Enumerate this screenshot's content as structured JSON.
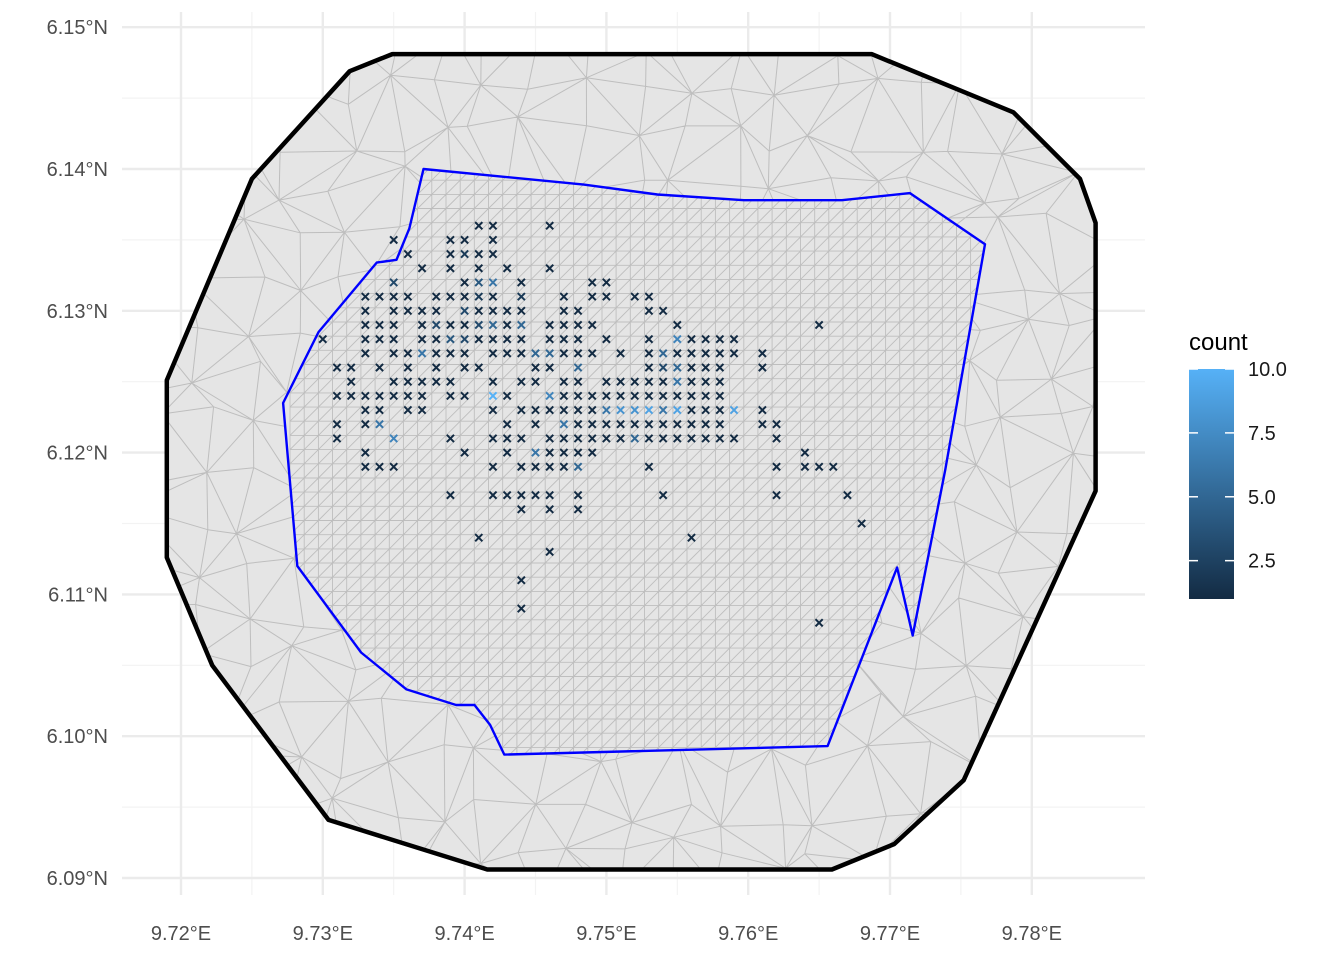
{
  "chart_data": {
    "type": "map",
    "x_axis": {
      "ticks": [
        "9.72°E",
        "9.73°E",
        "9.74°E",
        "9.75°E",
        "9.76°E",
        "9.77°E",
        "9.78°E"
      ],
      "tick_values": [
        9.72,
        9.73,
        9.74,
        9.75,
        9.76,
        9.77,
        9.78
      ]
    },
    "y_axis": {
      "ticks": [
        "6.09°N",
        "6.10°N",
        "6.11°N",
        "6.12°N",
        "6.13°N",
        "6.14°N",
        "6.15°N"
      ],
      "tick_values": [
        6.09,
        6.1,
        6.11,
        6.12,
        6.13,
        6.14,
        6.15
      ]
    },
    "xlim": [
      9.7155,
      9.788
    ],
    "ylim": [
      6.089,
      6.151
    ],
    "grid": true,
    "legend": {
      "title": "count",
      "labels": [
        "10.0",
        "7.5",
        "5.0",
        "2.5"
      ],
      "values": [
        10.0,
        7.5,
        5.0,
        2.5
      ],
      "range": [
        1,
        10
      ],
      "position": "right",
      "color_low": "#132b43",
      "color_high": "#56b1f7"
    },
    "colors": {
      "outer_boundary": "#000000",
      "inner_boundary": "#0000ff",
      "mesh_fill": "#e5e5e5",
      "mesh_line": "#bebebe",
      "grid": "#ebebeb"
    },
    "outer_boundary": [
      [
        9.7349,
        6.1481
      ],
      [
        9.7319,
        6.1469
      ],
      [
        9.725,
        6.1393
      ],
      [
        9.719,
        6.1251
      ],
      [
        9.719,
        6.1126
      ],
      [
        9.7222,
        6.105
      ],
      [
        9.7304,
        6.0941
      ],
      [
        9.7416,
        6.0906
      ],
      [
        9.7659,
        6.0906
      ],
      [
        9.7703,
        6.0924
      ],
      [
        9.7752,
        6.0969
      ],
      [
        9.7845,
        6.1173
      ],
      [
        9.7845,
        6.1362
      ],
      [
        9.7834,
        6.1393
      ],
      [
        9.7787,
        6.144
      ],
      [
        9.7687,
        6.1481
      ]
    ],
    "inner_boundary": [
      [
        9.7371,
        6.14
      ],
      [
        9.7484,
        6.1389
      ],
      [
        9.7536,
        6.1382
      ],
      [
        9.7597,
        6.1378
      ],
      [
        9.7666,
        6.1378
      ],
      [
        9.7714,
        6.1383
      ],
      [
        9.7767,
        6.1347
      ],
      [
        9.7739,
        6.1188
      ],
      [
        9.7716,
        6.1071
      ],
      [
        9.7705,
        6.1119
      ],
      [
        9.7656,
        6.0993
      ],
      [
        9.7428,
        6.0987
      ],
      [
        9.7418,
        6.1008
      ],
      [
        9.7407,
        6.1022
      ],
      [
        9.7394,
        6.1022
      ],
      [
        9.7359,
        6.1033
      ],
      [
        9.7327,
        6.1059
      ],
      [
        9.7282,
        6.112
      ],
      [
        9.7272,
        6.1235
      ],
      [
        9.7297,
        6.1285
      ],
      [
        9.7338,
        6.1334
      ],
      [
        9.7352,
        6.1336
      ],
      [
        9.7361,
        6.1358
      ]
    ],
    "points": [
      [
        9.735,
        6.135,
        1
      ],
      [
        9.739,
        6.135,
        1
      ],
      [
        9.74,
        6.135,
        1
      ],
      [
        9.742,
        6.135,
        1
      ],
      [
        9.736,
        6.134,
        1
      ],
      [
        9.741,
        6.136,
        1
      ],
      [
        9.742,
        6.136,
        1
      ],
      [
        9.746,
        6.136,
        1
      ],
      [
        9.737,
        6.133,
        1
      ],
      [
        9.739,
        6.134,
        1
      ],
      [
        9.74,
        6.134,
        2
      ],
      [
        9.741,
        6.134,
        1
      ],
      [
        9.742,
        6.134,
        1
      ],
      [
        9.739,
        6.133,
        1
      ],
      [
        9.741,
        6.133,
        1
      ],
      [
        9.743,
        6.133,
        1
      ],
      [
        9.746,
        6.133,
        1
      ],
      [
        9.735,
        6.132,
        3
      ],
      [
        9.74,
        6.132,
        1
      ],
      [
        9.741,
        6.132,
        4
      ],
      [
        9.742,
        6.132,
        6
      ],
      [
        9.744,
        6.132,
        1
      ],
      [
        9.749,
        6.132,
        1
      ],
      [
        9.75,
        6.132,
        1
      ],
      [
        9.733,
        6.131,
        1
      ],
      [
        9.734,
        6.131,
        1
      ],
      [
        9.735,
        6.131,
        1
      ],
      [
        9.736,
        6.131,
        1
      ],
      [
        9.738,
        6.131,
        1
      ],
      [
        9.739,
        6.131,
        1
      ],
      [
        9.74,
        6.131,
        1
      ],
      [
        9.741,
        6.131,
        2
      ],
      [
        9.742,
        6.131,
        1
      ],
      [
        9.744,
        6.131,
        2
      ],
      [
        9.747,
        6.131,
        1
      ],
      [
        9.749,
        6.131,
        1
      ],
      [
        9.75,
        6.131,
        1
      ],
      [
        9.752,
        6.131,
        1
      ],
      [
        9.753,
        6.131,
        1
      ],
      [
        9.733,
        6.13,
        1
      ],
      [
        9.735,
        6.13,
        1
      ],
      [
        9.736,
        6.13,
        1
      ],
      [
        9.737,
        6.13,
        1
      ],
      [
        9.738,
        6.13,
        1
      ],
      [
        9.74,
        6.13,
        3
      ],
      [
        9.741,
        6.13,
        1
      ],
      [
        9.742,
        6.13,
        1
      ],
      [
        9.743,
        6.13,
        1
      ],
      [
        9.744,
        6.13,
        1
      ],
      [
        9.747,
        6.13,
        1
      ],
      [
        9.748,
        6.13,
        1
      ],
      [
        9.753,
        6.13,
        1
      ],
      [
        9.754,
        6.13,
        1
      ],
      [
        9.733,
        6.129,
        1
      ],
      [
        9.734,
        6.129,
        1
      ],
      [
        9.735,
        6.129,
        1
      ],
      [
        9.737,
        6.129,
        1
      ],
      [
        9.738,
        6.129,
        3
      ],
      [
        9.739,
        6.129,
        1
      ],
      [
        9.74,
        6.129,
        1
      ],
      [
        9.741,
        6.129,
        3
      ],
      [
        9.742,
        6.129,
        5
      ],
      [
        9.743,
        6.129,
        1
      ],
      [
        9.744,
        6.129,
        5
      ],
      [
        9.746,
        6.129,
        1
      ],
      [
        9.747,
        6.129,
        1
      ],
      [
        9.748,
        6.129,
        1
      ],
      [
        9.749,
        6.129,
        1
      ],
      [
        9.755,
        6.129,
        1
      ],
      [
        9.73,
        6.128,
        1
      ],
      [
        9.733,
        6.128,
        1
      ],
      [
        9.734,
        6.128,
        1
      ],
      [
        9.735,
        6.128,
        1
      ],
      [
        9.737,
        6.128,
        1
      ],
      [
        9.738,
        6.128,
        1
      ],
      [
        9.739,
        6.128,
        4
      ],
      [
        9.74,
        6.128,
        3
      ],
      [
        9.741,
        6.128,
        1
      ],
      [
        9.742,
        6.128,
        1
      ],
      [
        9.743,
        6.128,
        1
      ],
      [
        9.744,
        6.128,
        1
      ],
      [
        9.746,
        6.128,
        1
      ],
      [
        9.747,
        6.128,
        1
      ],
      [
        9.748,
        6.128,
        1
      ],
      [
        9.75,
        6.128,
        1
      ],
      [
        9.753,
        6.128,
        1
      ],
      [
        9.755,
        6.128,
        7
      ],
      [
        9.756,
        6.128,
        1
      ],
      [
        9.757,
        6.128,
        1
      ],
      [
        9.758,
        6.128,
        1
      ],
      [
        9.759,
        6.128,
        1
      ],
      [
        9.733,
        6.127,
        1
      ],
      [
        9.735,
        6.127,
        1
      ],
      [
        9.736,
        6.127,
        1
      ],
      [
        9.737,
        6.127,
        6
      ],
      [
        9.738,
        6.127,
        1
      ],
      [
        9.739,
        6.127,
        1
      ],
      [
        9.74,
        6.127,
        1
      ],
      [
        9.742,
        6.127,
        1
      ],
      [
        9.743,
        6.127,
        1
      ],
      [
        9.744,
        6.127,
        1
      ],
      [
        9.745,
        6.127,
        5
      ],
      [
        9.746,
        6.127,
        5
      ],
      [
        9.747,
        6.127,
        1
      ],
      [
        9.748,
        6.127,
        1
      ],
      [
        9.749,
        6.127,
        1
      ],
      [
        9.751,
        6.127,
        1
      ],
      [
        9.753,
        6.127,
        1
      ],
      [
        9.754,
        6.127,
        5
      ],
      [
        9.755,
        6.127,
        1
      ],
      [
        9.756,
        6.127,
        1
      ],
      [
        9.757,
        6.127,
        1
      ],
      [
        9.758,
        6.127,
        1
      ],
      [
        9.759,
        6.127,
        1
      ],
      [
        9.761,
        6.127,
        1
      ],
      [
        9.731,
        6.126,
        1
      ],
      [
        9.732,
        6.126,
        1
      ],
      [
        9.734,
        6.126,
        1
      ],
      [
        9.736,
        6.126,
        1
      ],
      [
        9.738,
        6.126,
        1
      ],
      [
        9.74,
        6.126,
        1
      ],
      [
        9.741,
        6.126,
        1
      ],
      [
        9.745,
        6.126,
        1
      ],
      [
        9.746,
        6.126,
        1
      ],
      [
        9.748,
        6.126,
        5
      ],
      [
        9.753,
        6.126,
        1
      ],
      [
        9.754,
        6.126,
        3
      ],
      [
        9.755,
        6.126,
        5
      ],
      [
        9.756,
        6.126,
        1
      ],
      [
        9.757,
        6.126,
        1
      ],
      [
        9.758,
        6.126,
        1
      ],
      [
        9.761,
        6.126,
        1
      ],
      [
        9.732,
        6.125,
        1
      ],
      [
        9.735,
        6.125,
        1
      ],
      [
        9.736,
        6.125,
        1
      ],
      [
        9.737,
        6.125,
        1
      ],
      [
        9.738,
        6.125,
        1
      ],
      [
        9.739,
        6.125,
        1
      ],
      [
        9.742,
        6.125,
        1
      ],
      [
        9.744,
        6.125,
        1
      ],
      [
        9.745,
        6.125,
        1
      ],
      [
        9.747,
        6.125,
        1
      ],
      [
        9.748,
        6.125,
        1
      ],
      [
        9.75,
        6.125,
        1
      ],
      [
        9.751,
        6.125,
        1
      ],
      [
        9.752,
        6.125,
        1
      ],
      [
        9.753,
        6.125,
        1
      ],
      [
        9.754,
        6.125,
        1
      ],
      [
        9.755,
        6.125,
        6
      ],
      [
        9.756,
        6.125,
        1
      ],
      [
        9.757,
        6.125,
        1
      ],
      [
        9.758,
        6.125,
        1
      ],
      [
        9.731,
        6.124,
        1
      ],
      [
        9.732,
        6.124,
        1
      ],
      [
        9.733,
        6.124,
        1
      ],
      [
        9.734,
        6.124,
        1
      ],
      [
        9.735,
        6.124,
        1
      ],
      [
        9.736,
        6.124,
        1
      ],
      [
        9.737,
        6.124,
        1
      ],
      [
        9.739,
        6.124,
        1
      ],
      [
        9.74,
        6.124,
        1
      ],
      [
        9.742,
        6.124,
        10
      ],
      [
        9.743,
        6.124,
        1
      ],
      [
        9.746,
        6.124,
        7
      ],
      [
        9.747,
        6.124,
        1
      ],
      [
        9.748,
        6.124,
        1
      ],
      [
        9.749,
        6.124,
        1
      ],
      [
        9.75,
        6.124,
        1
      ],
      [
        9.751,
        6.124,
        1
      ],
      [
        9.752,
        6.124,
        1
      ],
      [
        9.753,
        6.124,
        1
      ],
      [
        9.754,
        6.124,
        1
      ],
      [
        9.755,
        6.124,
        1
      ],
      [
        9.756,
        6.124,
        1
      ],
      [
        9.757,
        6.124,
        1
      ],
      [
        9.758,
        6.124,
        1
      ],
      [
        9.733,
        6.123,
        1
      ],
      [
        9.734,
        6.123,
        1
      ],
      [
        9.736,
        6.123,
        1
      ],
      [
        9.737,
        6.123,
        1
      ],
      [
        9.742,
        6.123,
        1
      ],
      [
        9.744,
        6.123,
        1
      ],
      [
        9.745,
        6.123,
        1
      ],
      [
        9.746,
        6.123,
        1
      ],
      [
        9.747,
        6.123,
        1
      ],
      [
        9.748,
        6.123,
        1
      ],
      [
        9.749,
        6.123,
        1
      ],
      [
        9.75,
        6.123,
        6
      ],
      [
        9.751,
        6.123,
        8
      ],
      [
        9.752,
        6.123,
        8
      ],
      [
        9.753,
        6.123,
        9
      ],
      [
        9.754,
        6.123,
        6
      ],
      [
        9.755,
        6.123,
        9
      ],
      [
        9.756,
        6.123,
        1
      ],
      [
        9.757,
        6.123,
        1
      ],
      [
        9.758,
        6.123,
        1
      ],
      [
        9.759,
        6.123,
        9
      ],
      [
        9.761,
        6.123,
        1
      ],
      [
        9.731,
        6.122,
        1
      ],
      [
        9.733,
        6.122,
        1
      ],
      [
        9.734,
        6.122,
        6
      ],
      [
        9.743,
        6.122,
        1
      ],
      [
        9.745,
        6.122,
        1
      ],
      [
        9.747,
        6.122,
        6
      ],
      [
        9.748,
        6.122,
        1
      ],
      [
        9.749,
        6.122,
        1
      ],
      [
        9.75,
        6.122,
        1
      ],
      [
        9.751,
        6.122,
        1
      ],
      [
        9.752,
        6.122,
        1
      ],
      [
        9.753,
        6.122,
        1
      ],
      [
        9.754,
        6.122,
        1
      ],
      [
        9.755,
        6.122,
        1
      ],
      [
        9.756,
        6.122,
        1
      ],
      [
        9.757,
        6.122,
        1
      ],
      [
        9.758,
        6.122,
        1
      ],
      [
        9.761,
        6.122,
        1
      ],
      [
        9.762,
        6.122,
        1
      ],
      [
        9.731,
        6.121,
        1
      ],
      [
        9.735,
        6.121,
        7
      ],
      [
        9.739,
        6.121,
        1
      ],
      [
        9.742,
        6.121,
        1
      ],
      [
        9.743,
        6.121,
        1
      ],
      [
        9.744,
        6.121,
        1
      ],
      [
        9.746,
        6.121,
        1
      ],
      [
        9.747,
        6.121,
        1
      ],
      [
        9.748,
        6.121,
        1
      ],
      [
        9.749,
        6.121,
        1
      ],
      [
        9.75,
        6.121,
        1
      ],
      [
        9.751,
        6.121,
        1
      ],
      [
        9.752,
        6.121,
        5
      ],
      [
        9.753,
        6.121,
        1
      ],
      [
        9.754,
        6.121,
        1
      ],
      [
        9.755,
        6.121,
        1
      ],
      [
        9.756,
        6.121,
        1
      ],
      [
        9.757,
        6.121,
        1
      ],
      [
        9.758,
        6.121,
        1
      ],
      [
        9.759,
        6.121,
        1
      ],
      [
        9.762,
        6.121,
        1
      ],
      [
        9.733,
        6.12,
        1
      ],
      [
        9.74,
        6.12,
        1
      ],
      [
        9.743,
        6.12,
        1
      ],
      [
        9.745,
        6.12,
        6
      ],
      [
        9.746,
        6.12,
        1
      ],
      [
        9.747,
        6.12,
        1
      ],
      [
        9.748,
        6.12,
        1
      ],
      [
        9.749,
        6.12,
        1
      ],
      [
        9.764,
        6.12,
        1
      ],
      [
        9.733,
        6.119,
        1
      ],
      [
        9.734,
        6.119,
        1
      ],
      [
        9.735,
        6.119,
        1
      ],
      [
        9.742,
        6.119,
        1
      ],
      [
        9.744,
        6.119,
        1
      ],
      [
        9.745,
        6.119,
        1
      ],
      [
        9.746,
        6.119,
        1
      ],
      [
        9.747,
        6.119,
        1
      ],
      [
        9.748,
        6.119,
        5
      ],
      [
        9.753,
        6.119,
        1
      ],
      [
        9.762,
        6.119,
        1
      ],
      [
        9.764,
        6.119,
        1
      ],
      [
        9.765,
        6.119,
        1
      ],
      [
        9.766,
        6.119,
        1
      ],
      [
        9.739,
        6.117,
        1
      ],
      [
        9.742,
        6.117,
        1
      ],
      [
        9.743,
        6.117,
        1
      ],
      [
        9.744,
        6.117,
        1
      ],
      [
        9.745,
        6.117,
        1
      ],
      [
        9.746,
        6.117,
        1
      ],
      [
        9.748,
        6.117,
        1
      ],
      [
        9.754,
        6.117,
        1
      ],
      [
        9.762,
        6.117,
        1
      ],
      [
        9.767,
        6.117,
        1
      ],
      [
        9.744,
        6.116,
        1
      ],
      [
        9.746,
        6.116,
        1
      ],
      [
        9.748,
        6.116,
        1
      ],
      [
        9.768,
        6.115,
        1
      ],
      [
        9.741,
        6.114,
        1
      ],
      [
        9.756,
        6.114,
        1
      ],
      [
        9.746,
        6.113,
        1
      ],
      [
        9.744,
        6.111,
        1
      ],
      [
        9.744,
        6.109,
        1
      ],
      [
        9.765,
        6.108,
        1
      ],
      [
        9.765,
        6.129,
        1
      ]
    ]
  }
}
